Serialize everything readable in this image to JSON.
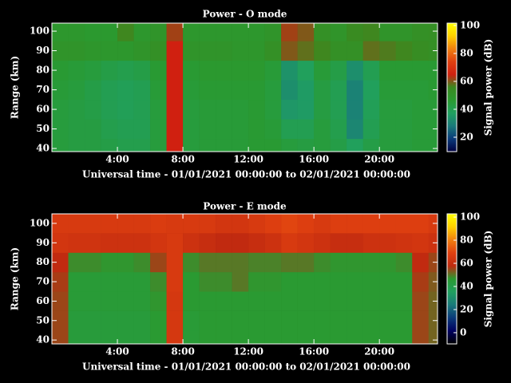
{
  "chart_data": [
    {
      "type": "heatmap",
      "title": "Power - O mode",
      "xlabel": "Universal time - 01/01/2021 00:00:00 to 02/01/2021 00:00:00",
      "ylabel": "Range (km)",
      "colorbar_label": "Signal power (dB)",
      "x": [
        0,
        1,
        2,
        3,
        4,
        5,
        6,
        7,
        8,
        9,
        10,
        11,
        12,
        13,
        14,
        15,
        16,
        17,
        18,
        19,
        20,
        21,
        22,
        23
      ],
      "y": [
        40,
        50,
        60,
        70,
        80,
        90,
        100
      ],
      "z": [
        [
          44,
          43,
          43,
          42,
          41,
          41,
          44,
          65,
          44,
          45,
          45,
          45,
          46,
          46,
          44,
          43,
          44,
          42,
          38,
          42,
          44,
          44,
          45,
          45
        ],
        [
          44,
          43,
          43,
          41,
          40,
          40,
          44,
          65,
          44,
          45,
          45,
          45,
          46,
          45,
          40,
          40,
          44,
          41,
          31,
          40,
          44,
          44,
          45,
          45
        ],
        [
          44,
          43,
          42,
          40,
          39,
          40,
          44,
          65,
          44,
          45,
          45,
          45,
          46,
          44,
          35,
          36,
          43,
          40,
          30,
          39,
          44,
          44,
          45,
          45
        ],
        [
          45,
          44,
          42,
          40,
          39,
          40,
          45,
          65,
          45,
          46,
          46,
          46,
          46,
          44,
          33,
          36,
          43,
          40,
          30,
          38,
          45,
          45,
          45,
          46
        ],
        [
          46,
          45,
          44,
          42,
          41,
          42,
          46,
          65,
          46,
          47,
          47,
          47,
          47,
          45,
          34,
          38,
          45,
          42,
          33,
          40,
          46,
          46,
          46,
          46
        ],
        [
          50,
          50,
          49,
          48,
          48,
          50,
          52,
          65,
          50,
          50,
          50,
          49,
          49,
          52,
          60,
          58,
          56,
          52,
          52,
          58,
          57,
          56,
          54,
          53
        ],
        [
          48,
          48,
          47,
          47,
          56,
          48,
          50,
          62,
          48,
          48,
          48,
          48,
          48,
          50,
          62,
          60,
          52,
          50,
          55,
          56,
          50,
          50,
          52,
          53
        ]
      ],
      "xlim": [
        0,
        23.55
      ],
      "ylim": [
        38.4,
        104.1
      ],
      "xticks": [
        {
          "value": 4,
          "label": "4:00"
        },
        {
          "value": 8,
          "label": "8:00"
        },
        {
          "value": 12,
          "label": "12:00"
        },
        {
          "value": 16,
          "label": "16:00"
        },
        {
          "value": 20,
          "label": "20:00"
        }
      ],
      "yticks": [
        40,
        50,
        60,
        70,
        80,
        90,
        100
      ],
      "zlim": [
        9.7,
        101.7
      ],
      "zticks": [
        20,
        40,
        60,
        80,
        100
      ],
      "colormap": [
        "#000040",
        "#0a3a7a",
        "#1a7a7a",
        "#20a060",
        "#2a9a30",
        "#3a8a20",
        "#d02010",
        "#e04010",
        "#f08010",
        "#ffd000",
        "#ffff00"
      ]
    },
    {
      "type": "heatmap",
      "title": "Power - E mode",
      "xlabel": "Universal time - 01/01/2021 00:00:00 to 02/01/2021 00:00:00",
      "ylabel": "Range (km)",
      "colorbar_label": "Signal power (dB)",
      "x": [
        0,
        1,
        2,
        3,
        4,
        5,
        6,
        7,
        8,
        9,
        10,
        11,
        12,
        13,
        14,
        15,
        16,
        17,
        18,
        19,
        20,
        21,
        22,
        23
      ],
      "y": [
        40,
        50,
        60,
        70,
        80,
        90,
        100
      ],
      "z": [
        [
          55,
          44,
          44,
          44,
          44,
          44,
          46,
          65,
          45,
          46,
          46,
          46,
          46,
          46,
          46,
          46,
          46,
          46,
          46,
          46,
          46,
          46,
          55,
          52
        ],
        [
          55,
          44,
          44,
          44,
          44,
          44,
          46,
          65,
          45,
          46,
          46,
          46,
          46,
          46,
          46,
          46,
          46,
          46,
          46,
          46,
          46,
          46,
          55,
          52
        ],
        [
          55,
          45,
          45,
          45,
          45,
          45,
          47,
          65,
          46,
          46,
          46,
          46,
          46,
          46,
          46,
          46,
          46,
          46,
          46,
          46,
          46,
          46,
          55,
          52
        ],
        [
          56,
          45,
          45,
          45,
          45,
          45,
          48,
          66,
          46,
          48,
          48,
          50,
          47,
          47,
          46,
          46,
          46,
          46,
          46,
          46,
          46,
          46,
          56,
          53
        ],
        [
          58,
          48,
          48,
          47,
          47,
          48,
          55,
          66,
          48,
          50,
          50,
          50,
          49,
          49,
          50,
          50,
          48,
          47,
          47,
          47,
          47,
          48,
          58,
          55
        ],
        [
          64,
          63,
          63,
          62,
          62,
          62,
          64,
          66,
          62,
          60,
          58,
          58,
          60,
          62,
          66,
          64,
          62,
          60,
          60,
          62,
          62,
          63,
          64,
          62
        ],
        [
          66,
          66,
          66,
          66,
          66,
          66,
          67,
          66,
          66,
          66,
          64,
          64,
          66,
          68,
          70,
          68,
          66,
          68,
          68,
          68,
          68,
          68,
          68,
          66
        ]
      ],
      "xlim": [
        0,
        23.55
      ],
      "ylim": [
        38,
        104.9
      ],
      "xticks": [
        {
          "value": 4,
          "label": "4:00"
        },
        {
          "value": 8,
          "label": "8:00"
        },
        {
          "value": 12,
          "label": "12:00"
        },
        {
          "value": 16,
          "label": "16:00"
        },
        {
          "value": 20,
          "label": "20:00"
        }
      ],
      "yticks": [
        40,
        50,
        60,
        70,
        80,
        90,
        100
      ],
      "zlim": [
        -9.7,
        102.8
      ],
      "zticks": [
        0,
        20,
        40,
        60,
        80,
        100
      ],
      "colormap": [
        "#000000",
        "#000060",
        "#0a3a7a",
        "#1a7a7a",
        "#20a060",
        "#2a9a30",
        "#c02a10",
        "#e04010",
        "#f08010",
        "#ffd000",
        "#ffff00"
      ]
    }
  ]
}
